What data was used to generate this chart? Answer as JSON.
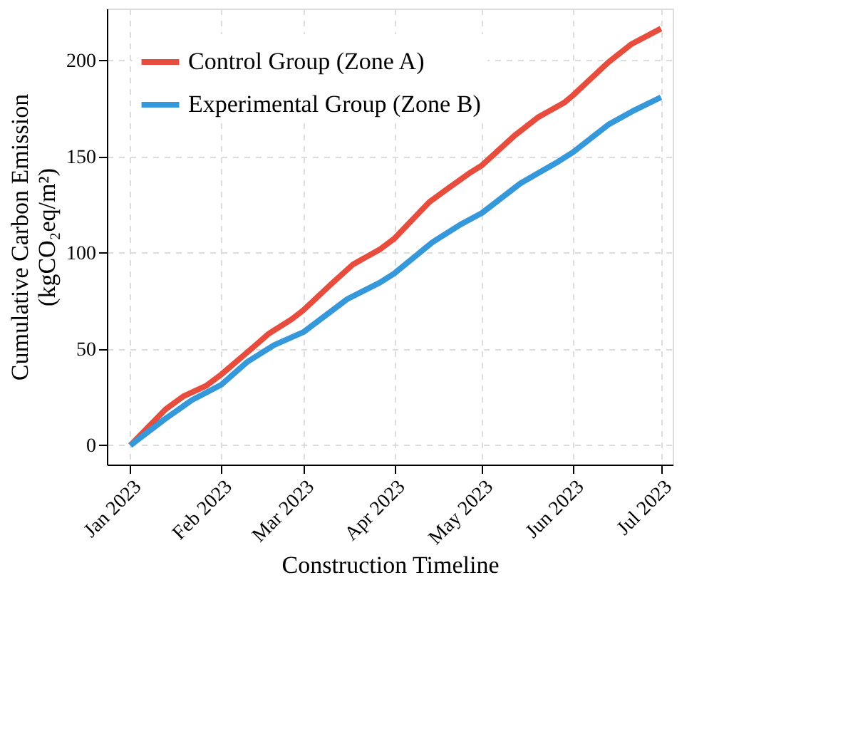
{
  "chart_data": {
    "type": "line",
    "xlabel": "Construction Timeline",
    "ylabel": "Cumulative Carbon Emission\n(kgCO₂eq/m²)",
    "series": [
      {
        "name": "Control Group (Zone A)",
        "color": "#e74c3c",
        "x": [
          "2023-01-01",
          "2023-01-13",
          "2023-01-19",
          "2023-01-27",
          "2023-02-01",
          "2023-02-12",
          "2023-02-17",
          "2023-02-25",
          "2023-03-01",
          "2023-03-11",
          "2023-03-18",
          "2023-03-27",
          "2023-04-01",
          "2023-04-13",
          "2023-04-20",
          "2023-04-27",
          "2023-05-01",
          "2023-05-12",
          "2023-05-20",
          "2023-05-29",
          "2023-06-01",
          "2023-06-13",
          "2023-06-21",
          "2023-07-01"
        ],
        "values": [
          0,
          18.7,
          25.4,
          31.1,
          36.8,
          51.1,
          57.8,
          65.5,
          70.2,
          84.5,
          94.1,
          101.7,
          107.4,
          126.5,
          134.2,
          141.8,
          145.6,
          160.9,
          170.4,
          178.1,
          181.9,
          199,
          208.6,
          216.6
        ]
      },
      {
        "name": "Experimental Group (Zone B)",
        "color": "#3498db",
        "x": [
          "2023-01-01",
          "2023-01-13",
          "2023-01-22",
          "2023-02-01",
          "2023-02-10",
          "2023-02-19",
          "2023-03-01",
          "2023-03-16",
          "2023-03-27",
          "2023-04-01",
          "2023-04-14",
          "2023-04-24",
          "2023-05-01",
          "2023-05-14",
          "2023-05-27",
          "2023-06-01",
          "2023-06-13",
          "2023-06-22",
          "2023-07-01"
        ],
        "values": [
          0,
          13.9,
          23.5,
          31.5,
          43.5,
          52.1,
          58.8,
          76,
          84.5,
          89.3,
          105.5,
          115.1,
          120.8,
          136.1,
          147.5,
          152.3,
          166.6,
          174.2,
          180.9
        ]
      }
    ],
    "xlim": [
      "2022-12-24",
      "2023-07-05"
    ],
    "xticks": [
      {
        "value": "2023-01-01",
        "label": "Jan 2023"
      },
      {
        "value": "2023-02-01",
        "label": "Feb 2023"
      },
      {
        "value": "2023-03-01",
        "label": "Mar 2023"
      },
      {
        "value": "2023-04-01",
        "label": "Apr 2023"
      },
      {
        "value": "2023-05-01",
        "label": "May 2023"
      },
      {
        "value": "2023-06-01",
        "label": "Jun 2023"
      },
      {
        "value": "2023-07-01",
        "label": "Jul 2023"
      }
    ],
    "ylim": [
      -10,
      227
    ],
    "yticks": [
      0,
      50,
      100,
      150,
      200
    ],
    "grid": true,
    "legend": "top left",
    "line_style": "solid",
    "marker": "none"
  }
}
